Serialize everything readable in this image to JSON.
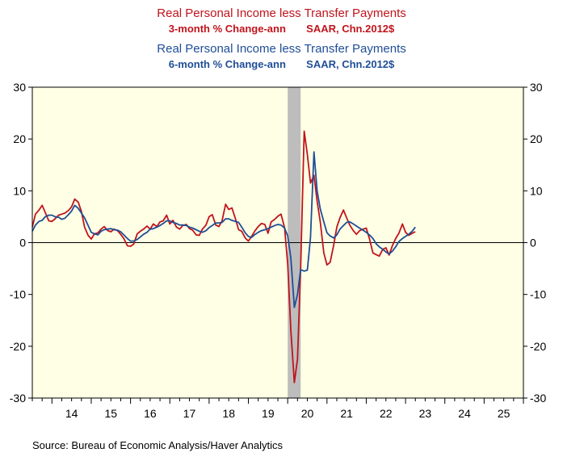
{
  "chart_data": {
    "type": "line",
    "title_lines": [
      {
        "text": "Real Personal Income less Transfer Payments",
        "color": "#c0141c",
        "style": "main"
      },
      {
        "text": "3-month % Change-ann       SAAR, Chn.2012$",
        "color": "#c0141c",
        "style": "sub"
      },
      {
        "text": "Real Personal Income less Transfer Payments",
        "color": "#1f4e96",
        "style": "main"
      },
      {
        "text": "6-month % Change-ann       SAAR, Chn.2012$",
        "color": "#1f4e96",
        "style": "sub"
      }
    ],
    "ylim": [
      -30,
      30
    ],
    "yticks": [
      30,
      20,
      10,
      0,
      -10,
      -20,
      -30
    ],
    "xlim": [
      2013.5,
      2026.0
    ],
    "year_labels": [
      "14",
      "15",
      "16",
      "17",
      "18",
      "19",
      "20",
      "21",
      "22",
      "23",
      "24",
      "25"
    ],
    "recession": [
      2020.0,
      2020.33
    ],
    "background_color": "#ffffe5",
    "series": [
      {
        "color": "#c0141c",
        "points": [
          [
            2013.5,
            3.0
          ],
          [
            2013.58,
            5.5
          ],
          [
            2013.67,
            6.3
          ],
          [
            2013.75,
            7.2
          ],
          [
            2013.83,
            5.8
          ],
          [
            2013.92,
            4.2
          ],
          [
            2014.0,
            4.1
          ],
          [
            2014.08,
            4.6
          ],
          [
            2014.17,
            5.3
          ],
          [
            2014.25,
            5.5
          ],
          [
            2014.33,
            5.7
          ],
          [
            2014.42,
            6.2
          ],
          [
            2014.5,
            6.9
          ],
          [
            2014.58,
            8.4
          ],
          [
            2014.67,
            7.8
          ],
          [
            2014.75,
            6.0
          ],
          [
            2014.83,
            3.0
          ],
          [
            2014.92,
            1.4
          ],
          [
            2015.0,
            0.7
          ],
          [
            2015.08,
            1.7
          ],
          [
            2015.17,
            1.9
          ],
          [
            2015.25,
            2.6
          ],
          [
            2015.33,
            3.1
          ],
          [
            2015.42,
            2.3
          ],
          [
            2015.5,
            2.1
          ],
          [
            2015.58,
            2.6
          ],
          [
            2015.67,
            2.3
          ],
          [
            2015.75,
            1.6
          ],
          [
            2015.83,
            0.8
          ],
          [
            2015.92,
            -0.6
          ],
          [
            2016.0,
            -0.7
          ],
          [
            2016.08,
            -0.3
          ],
          [
            2016.17,
            1.7
          ],
          [
            2016.25,
            2.2
          ],
          [
            2016.33,
            2.6
          ],
          [
            2016.42,
            3.2
          ],
          [
            2016.5,
            2.6
          ],
          [
            2016.58,
            3.6
          ],
          [
            2016.67,
            3.1
          ],
          [
            2016.75,
            4.0
          ],
          [
            2016.83,
            4.2
          ],
          [
            2016.92,
            5.3
          ],
          [
            2017.0,
            3.6
          ],
          [
            2017.08,
            4.3
          ],
          [
            2017.17,
            3.0
          ],
          [
            2017.25,
            2.6
          ],
          [
            2017.33,
            3.3
          ],
          [
            2017.42,
            3.5
          ],
          [
            2017.5,
            2.7
          ],
          [
            2017.58,
            2.4
          ],
          [
            2017.67,
            1.5
          ],
          [
            2017.75,
            1.4
          ],
          [
            2017.83,
            2.6
          ],
          [
            2017.92,
            3.4
          ],
          [
            2018.0,
            5.0
          ],
          [
            2018.08,
            5.4
          ],
          [
            2018.17,
            3.4
          ],
          [
            2018.25,
            3.1
          ],
          [
            2018.33,
            4.2
          ],
          [
            2018.42,
            7.4
          ],
          [
            2018.5,
            6.4
          ],
          [
            2018.58,
            6.7
          ],
          [
            2018.67,
            4.6
          ],
          [
            2018.75,
            2.5
          ],
          [
            2018.83,
            2.2
          ],
          [
            2018.92,
            0.9
          ],
          [
            2019.0,
            0.3
          ],
          [
            2019.08,
            1.2
          ],
          [
            2019.17,
            2.3
          ],
          [
            2019.25,
            3.1
          ],
          [
            2019.33,
            3.7
          ],
          [
            2019.42,
            3.5
          ],
          [
            2019.5,
            1.8
          ],
          [
            2019.58,
            4.0
          ],
          [
            2019.67,
            4.5
          ],
          [
            2019.75,
            5.1
          ],
          [
            2019.83,
            5.5
          ],
          [
            2019.92,
            2.9
          ],
          [
            2020.0,
            -4.2
          ],
          [
            2020.08,
            -17.0
          ],
          [
            2020.17,
            -27.0
          ],
          [
            2020.25,
            -22.5
          ],
          [
            2020.33,
            -5.0
          ],
          [
            2020.42,
            21.5
          ],
          [
            2020.5,
            17.0
          ],
          [
            2020.58,
            11.5
          ],
          [
            2020.67,
            13.0
          ],
          [
            2020.75,
            8.0
          ],
          [
            2020.83,
            4.0
          ],
          [
            2020.92,
            -2.0
          ],
          [
            2021.0,
            -4.3
          ],
          [
            2021.08,
            -3.8
          ],
          [
            2021.17,
            -0.5
          ],
          [
            2021.25,
            3.0
          ],
          [
            2021.33,
            4.8
          ],
          [
            2021.42,
            6.3
          ],
          [
            2021.5,
            4.8
          ],
          [
            2021.58,
            3.4
          ],
          [
            2021.67,
            2.3
          ],
          [
            2021.75,
            1.6
          ],
          [
            2021.83,
            2.3
          ],
          [
            2021.92,
            2.6
          ],
          [
            2022.0,
            2.8
          ],
          [
            2022.08,
            0.8
          ],
          [
            2022.17,
            -2.0
          ],
          [
            2022.25,
            -2.3
          ],
          [
            2022.33,
            -2.6
          ],
          [
            2022.42,
            -1.3
          ],
          [
            2022.5,
            -1.0
          ],
          [
            2022.58,
            -2.4
          ],
          [
            2022.67,
            -0.5
          ],
          [
            2022.75,
            0.8
          ],
          [
            2022.83,
            1.8
          ],
          [
            2022.92,
            3.6
          ],
          [
            2023.0,
            2.0
          ],
          [
            2023.08,
            1.4
          ],
          [
            2023.17,
            1.8
          ],
          [
            2023.25,
            2.1
          ]
        ]
      },
      {
        "color": "#1f4e96",
        "points": [
          [
            2013.5,
            2.2
          ],
          [
            2013.58,
            3.4
          ],
          [
            2013.67,
            4.1
          ],
          [
            2013.75,
            4.3
          ],
          [
            2013.83,
            5.0
          ],
          [
            2013.92,
            5.3
          ],
          [
            2014.0,
            5.3
          ],
          [
            2014.08,
            5.0
          ],
          [
            2014.17,
            4.9
          ],
          [
            2014.25,
            4.5
          ],
          [
            2014.33,
            4.7
          ],
          [
            2014.42,
            5.4
          ],
          [
            2014.5,
            6.1
          ],
          [
            2014.58,
            7.2
          ],
          [
            2014.67,
            6.6
          ],
          [
            2014.75,
            5.7
          ],
          [
            2014.83,
            4.8
          ],
          [
            2014.92,
            3.3
          ],
          [
            2015.0,
            2.0
          ],
          [
            2015.08,
            1.7
          ],
          [
            2015.17,
            1.5
          ],
          [
            2015.25,
            2.2
          ],
          [
            2015.33,
            2.5
          ],
          [
            2015.42,
            2.6
          ],
          [
            2015.5,
            2.7
          ],
          [
            2015.58,
            2.5
          ],
          [
            2015.67,
            2.4
          ],
          [
            2015.75,
            2.1
          ],
          [
            2015.83,
            1.5
          ],
          [
            2015.92,
            0.8
          ],
          [
            2016.0,
            0.3
          ],
          [
            2016.08,
            0.3
          ],
          [
            2016.17,
            0.6
          ],
          [
            2016.25,
            1.1
          ],
          [
            2016.33,
            1.6
          ],
          [
            2016.42,
            2.0
          ],
          [
            2016.5,
            2.6
          ],
          [
            2016.58,
            2.7
          ],
          [
            2016.67,
            3.0
          ],
          [
            2016.75,
            3.3
          ],
          [
            2016.83,
            3.7
          ],
          [
            2016.92,
            4.2
          ],
          [
            2017.0,
            4.2
          ],
          [
            2017.08,
            3.9
          ],
          [
            2017.17,
            3.7
          ],
          [
            2017.25,
            3.4
          ],
          [
            2017.33,
            3.4
          ],
          [
            2017.42,
            3.3
          ],
          [
            2017.5,
            3.0
          ],
          [
            2017.58,
            2.8
          ],
          [
            2017.67,
            2.5
          ],
          [
            2017.75,
            2.2
          ],
          [
            2017.83,
            2.0
          ],
          [
            2017.92,
            2.3
          ],
          [
            2018.0,
            2.9
          ],
          [
            2018.08,
            3.3
          ],
          [
            2018.17,
            3.8
          ],
          [
            2018.25,
            3.8
          ],
          [
            2018.33,
            3.9
          ],
          [
            2018.42,
            4.6
          ],
          [
            2018.5,
            4.6
          ],
          [
            2018.58,
            4.3
          ],
          [
            2018.67,
            4.1
          ],
          [
            2018.75,
            3.9
          ],
          [
            2018.83,
            3.0
          ],
          [
            2018.92,
            1.9
          ],
          [
            2019.0,
            1.2
          ],
          [
            2019.08,
            1.0
          ],
          [
            2019.17,
            1.6
          ],
          [
            2019.25,
            2.0
          ],
          [
            2019.33,
            2.3
          ],
          [
            2019.42,
            2.5
          ],
          [
            2019.5,
            2.7
          ],
          [
            2019.58,
            3.0
          ],
          [
            2019.67,
            3.3
          ],
          [
            2019.75,
            3.5
          ],
          [
            2019.83,
            3.4
          ],
          [
            2019.92,
            2.8
          ],
          [
            2020.0,
            1.3
          ],
          [
            2020.08,
            -3.0
          ],
          [
            2020.17,
            -12.5
          ],
          [
            2020.25,
            -10.0
          ],
          [
            2020.33,
            -5.2
          ],
          [
            2020.42,
            -5.5
          ],
          [
            2020.5,
            -5.3
          ],
          [
            2020.58,
            1.0
          ],
          [
            2020.67,
            17.5
          ],
          [
            2020.75,
            10.0
          ],
          [
            2020.83,
            6.5
          ],
          [
            2020.92,
            4.0
          ],
          [
            2021.0,
            1.9
          ],
          [
            2021.08,
            1.3
          ],
          [
            2021.17,
            0.9
          ],
          [
            2021.25,
            1.5
          ],
          [
            2021.33,
            2.6
          ],
          [
            2021.42,
            3.3
          ],
          [
            2021.5,
            3.9
          ],
          [
            2021.58,
            4.0
          ],
          [
            2021.67,
            3.6
          ],
          [
            2021.75,
            3.2
          ],
          [
            2021.83,
            2.8
          ],
          [
            2021.92,
            2.4
          ],
          [
            2022.0,
            2.0
          ],
          [
            2022.08,
            1.5
          ],
          [
            2022.17,
            0.8
          ],
          [
            2022.25,
            -0.2
          ],
          [
            2022.33,
            -0.8
          ],
          [
            2022.42,
            -1.3
          ],
          [
            2022.5,
            -1.8
          ],
          [
            2022.58,
            -2.2
          ],
          [
            2022.67,
            -1.6
          ],
          [
            2022.75,
            -0.8
          ],
          [
            2022.83,
            0.2
          ],
          [
            2022.92,
            0.8
          ],
          [
            2023.0,
            1.2
          ],
          [
            2023.08,
            1.6
          ],
          [
            2023.17,
            2.2
          ],
          [
            2023.25,
            3.0
          ]
        ]
      }
    ],
    "source": "Source:  Bureau of Economic Analysis/Haver Analytics"
  }
}
